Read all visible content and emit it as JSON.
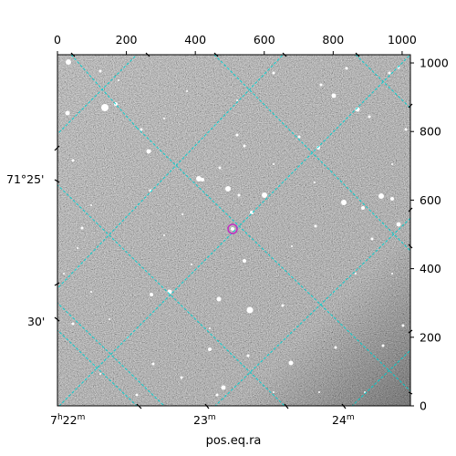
{
  "figure": {
    "xlabel": "pos.eq.ra",
    "colors": {
      "background": "#ffffff",
      "grid": "#00d0d0",
      "marker": "#c030c0",
      "star": "#ffffff"
    }
  },
  "axes": {
    "pixel_x": {
      "range": [
        0,
        1024
      ],
      "ticks": [
        0,
        200,
        400,
        600,
        800,
        1000
      ]
    },
    "pixel_y": {
      "range": [
        0,
        1024
      ],
      "ticks": [
        0,
        200,
        400,
        600,
        800,
        1000
      ]
    },
    "ra_labels": [
      {
        "hours": "7",
        "minutes": "22",
        "text_main": "7",
        "text_h": "h",
        "text_m2": "22",
        "text_m": "m"
      },
      {
        "text": "23",
        "sup": "m"
      },
      {
        "text": "24",
        "sup": "m"
      }
    ],
    "dec_labels": [
      "71°25'",
      "30'"
    ]
  }
}
